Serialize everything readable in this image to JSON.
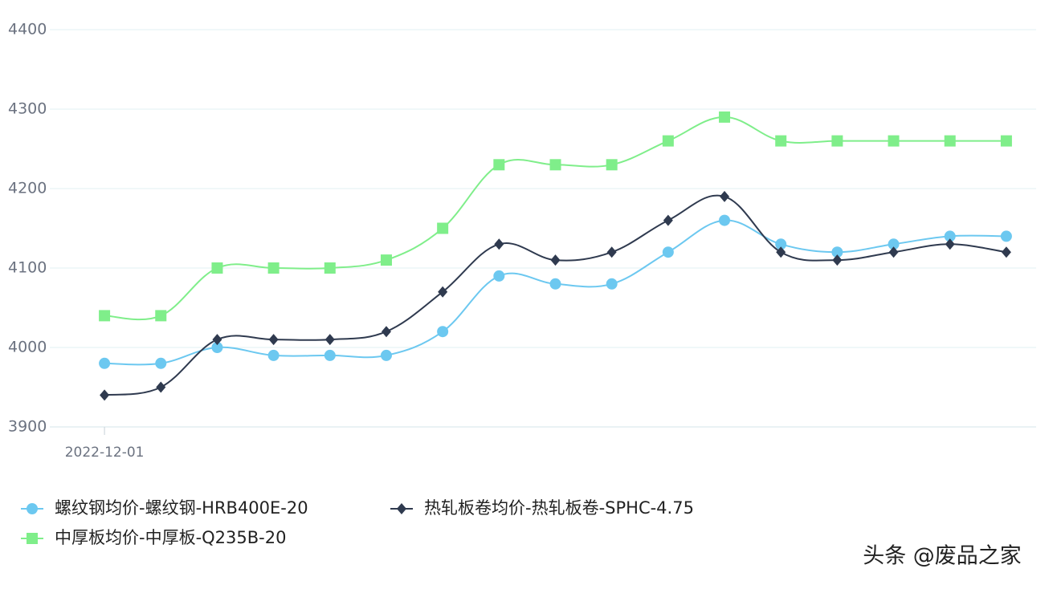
{
  "chart_data": {
    "type": "line",
    "categories": [
      "2022-12-01",
      null,
      null,
      null,
      null,
      null,
      null,
      null,
      null,
      null,
      null,
      null,
      null,
      null,
      null,
      null,
      null
    ],
    "series": [
      {
        "name": "螺纹钢均价-螺纹钢-HRB400E-20",
        "color": "#6cc8f0",
        "marker": "circle",
        "values": [
          3980,
          3980,
          4000,
          3990,
          3990,
          3990,
          4020,
          4090,
          4080,
          4080,
          4120,
          4160,
          4130,
          4120,
          4130,
          4140,
          4140
        ]
      },
      {
        "name": "热轧板卷均价-热轧板卷-SPHC-4.75",
        "color": "#2f3a4f",
        "marker": "diamond",
        "values": [
          3940,
          3950,
          4010,
          4010,
          4010,
          4020,
          4070,
          4130,
          4110,
          4120,
          4160,
          4190,
          4120,
          4110,
          4120,
          4130,
          4120
        ]
      },
      {
        "name": "中厚板均价-中厚板-Q235B-20",
        "color": "#7fee8a",
        "marker": "square",
        "values": [
          4040,
          4040,
          4100,
          4100,
          4100,
          4110,
          4150,
          4230,
          4230,
          4230,
          4260,
          4290,
          4260,
          4260,
          4260,
          4260,
          4260
        ]
      }
    ],
    "ylim": [
      3900,
      4400
    ],
    "yticks": [
      3900,
      4000,
      4100,
      4200,
      4300,
      4400
    ],
    "grid": true,
    "watermark": "头条 @废品之家"
  }
}
